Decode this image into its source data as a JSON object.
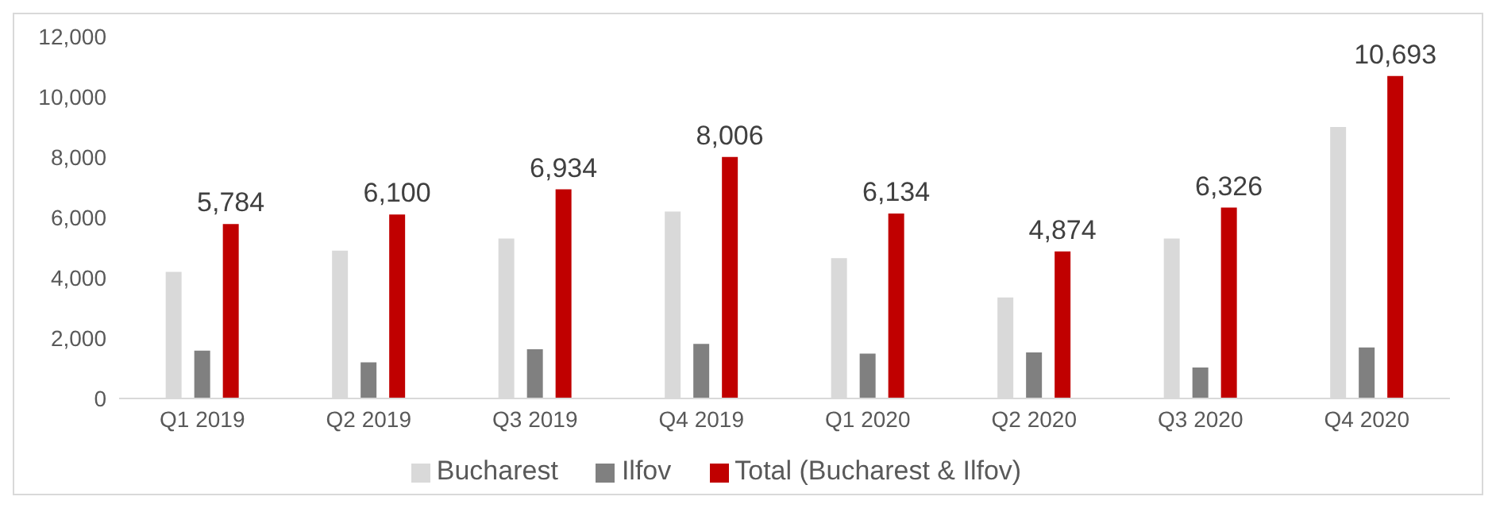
{
  "chart_data": {
    "type": "bar",
    "categories": [
      "Q1 2019",
      "Q2 2019",
      "Q3 2019",
      "Q4 2019",
      "Q1 2020",
      "Q2 2020",
      "Q3 2020",
      "Q4 2020"
    ],
    "series": [
      {
        "name": "Bucharest",
        "color": "#d9d9d9",
        "values": [
          4200,
          4900,
          5300,
          6200,
          4650,
          3350,
          5300,
          9000
        ]
      },
      {
        "name": "Ilfov",
        "color": "#808080",
        "values": [
          1584,
          1200,
          1634,
          1806,
          1484,
          1524,
          1026,
          1693
        ]
      },
      {
        "name": "Total (Bucharest & Ilfov)",
        "color": "#c00000",
        "values": [
          5784,
          6100,
          6934,
          8006,
          6134,
          4874,
          6326,
          10693
        ],
        "value_labels": [
          "5,784",
          "6,100",
          "6,934",
          "8,006",
          "6,134",
          "4,874",
          "6,326",
          "10,693"
        ]
      }
    ],
    "ylim": [
      0,
      12000
    ],
    "yticks": [
      {
        "value": 0,
        "label": "0"
      },
      {
        "value": 2000,
        "label": "2,000"
      },
      {
        "value": 4000,
        "label": "4,000"
      },
      {
        "value": 6000,
        "label": "6,000"
      },
      {
        "value": 8000,
        "label": "8,000"
      },
      {
        "value": 10000,
        "label": "10,000"
      },
      {
        "value": 12000,
        "label": "12,000"
      }
    ],
    "grid": false,
    "legend": "bottom"
  }
}
